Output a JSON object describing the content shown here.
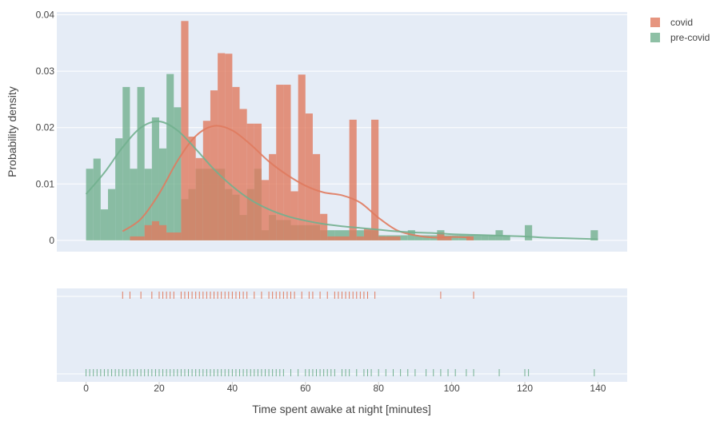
{
  "chart_data": {
    "type": "histogram",
    "xlabel": "Time spent awake at night [minutes]",
    "ylabel": "Probability density",
    "xlim": [
      -8,
      148
    ],
    "ylim": [
      -0.002,
      0.0405
    ],
    "x_ticks": [
      0,
      20,
      40,
      60,
      80,
      100,
      120,
      140
    ],
    "y_ticks": [
      0,
      0.01,
      0.02,
      0.03,
      0.04
    ],
    "y_tick_labels": [
      "0",
      "0.01",
      "0.02",
      "0.03",
      "0.04"
    ],
    "bin_width": 2,
    "legend_position": "top-right",
    "series": [
      {
        "name": "covid",
        "color": "#e07b5f",
        "bin_starts": [
          10,
          12,
          14,
          16,
          18,
          20,
          22,
          24,
          26,
          28,
          30,
          32,
          34,
          36,
          38,
          40,
          42,
          44,
          46,
          48,
          50,
          52,
          54,
          56,
          58,
          60,
          62,
          64,
          66,
          68,
          70,
          72,
          74,
          76,
          78,
          80,
          82,
          84,
          86,
          88,
          90,
          92,
          94,
          96,
          98,
          100,
          102,
          104,
          106
        ],
        "density": [
          0,
          0.0007,
          0.0007,
          0.0027,
          0.0034,
          0.0027,
          0.0014,
          0.0014,
          0.0389,
          0.0184,
          0.0146,
          0.0212,
          0.0266,
          0.0332,
          0.0331,
          0.0272,
          0.0233,
          0.0207,
          0.0207,
          0.0107,
          0.0153,
          0.0276,
          0.0276,
          0.0087,
          0.0294,
          0.0225,
          0.0153,
          0.0047,
          0.0007,
          0.0007,
          0.0007,
          0.0214,
          0.0007,
          0.0021,
          0.0214,
          0.0007,
          0.0007,
          0.0007,
          0,
          0,
          0,
          0,
          0,
          0.0014,
          0.0007,
          0,
          0,
          0.0007,
          0
        ],
        "kde_x": [
          10,
          15,
          20,
          25,
          30,
          35,
          40,
          45,
          50,
          55,
          60,
          65,
          70,
          75,
          80,
          85,
          90,
          95,
          100,
          105
        ],
        "kde_y": [
          0.0016,
          0.0038,
          0.0083,
          0.0141,
          0.0185,
          0.0203,
          0.0195,
          0.017,
          0.014,
          0.0116,
          0.0097,
          0.0085,
          0.008,
          0.0067,
          0.004,
          0.0018,
          0.0009,
          0.0005,
          0.0006,
          0.0005
        ]
      },
      {
        "name": "pre-covid",
        "color": "#72b08f",
        "bin_starts": [
          0,
          2,
          4,
          6,
          8,
          10,
          12,
          14,
          16,
          18,
          20,
          22,
          24,
          26,
          28,
          30,
          32,
          34,
          36,
          38,
          40,
          42,
          44,
          46,
          48,
          50,
          52,
          54,
          56,
          58,
          60,
          62,
          64,
          66,
          68,
          70,
          72,
          74,
          76,
          78,
          80,
          82,
          84,
          86,
          88,
          90,
          92,
          94,
          96,
          98,
          100,
          102,
          104,
          106,
          108,
          110,
          112,
          114,
          116,
          118,
          120,
          122,
          124,
          126,
          128,
          130,
          132,
          134,
          136,
          138
        ],
        "density": [
          0.0127,
          0.0145,
          0.0055,
          0.0091,
          0.0181,
          0.0272,
          0.0127,
          0.0272,
          0.0127,
          0.0218,
          0.0163,
          0.0295,
          0.0236,
          0.0073,
          0.0091,
          0.0127,
          0.0127,
          0.0127,
          0.0127,
          0.0091,
          0.0081,
          0.0045,
          0.0091,
          0.0127,
          0.0018,
          0.0045,
          0.0036,
          0.0036,
          0.0027,
          0.0027,
          0.0027,
          0.0027,
          0.0018,
          0.0018,
          0.0018,
          0.0018,
          0.0018,
          0.0018,
          0.0018,
          0.0018,
          0.0009,
          0.0009,
          0.0009,
          0.0009,
          0.0018,
          0.0009,
          0.0009,
          0.0009,
          0.0018,
          0.0009,
          0.0009,
          0.0009,
          0.0009,
          0.0009,
          0.0009,
          0.0009,
          0.0018,
          0.0009,
          0,
          0,
          0.0027,
          0,
          0,
          0,
          0,
          0,
          0,
          0,
          0,
          0.0018
        ],
        "kde_x": [
          0,
          5,
          10,
          15,
          20,
          25,
          30,
          35,
          40,
          45,
          50,
          55,
          60,
          65,
          70,
          75,
          80,
          85,
          90,
          95,
          100,
          105,
          110,
          115,
          120,
          125,
          130,
          135,
          140
        ],
        "kde_y": [
          0.0082,
          0.012,
          0.0165,
          0.02,
          0.0211,
          0.0195,
          0.0162,
          0.0126,
          0.0096,
          0.0072,
          0.0055,
          0.0043,
          0.0035,
          0.0029,
          0.0025,
          0.0022,
          0.0019,
          0.0016,
          0.0014,
          0.0013,
          0.0011,
          0.001,
          0.0009,
          0.0008,
          0.0007,
          0.0005,
          0.0004,
          0.0003,
          0.0002
        ]
      }
    ],
    "rug": {
      "covid": [
        10,
        12,
        15,
        18,
        20,
        21,
        22,
        23,
        24,
        26,
        27,
        28,
        29,
        30,
        31,
        32,
        33,
        34,
        35,
        36,
        37,
        38,
        39,
        40,
        41,
        42,
        43,
        44,
        46,
        48,
        50,
        51,
        52,
        53,
        54,
        55,
        56,
        57,
        59,
        61,
        62,
        64,
        66,
        68,
        69,
        70,
        71,
        72,
        73,
        74,
        75,
        76,
        77,
        79,
        97,
        106
      ],
      "pre-covid": [
        0,
        1,
        2,
        3,
        4,
        5,
        6,
        7,
        8,
        9,
        10,
        11,
        12,
        13,
        14,
        15,
        16,
        17,
        18,
        19,
        20,
        21,
        22,
        23,
        24,
        25,
        26,
        27,
        28,
        29,
        30,
        31,
        32,
        33,
        34,
        35,
        36,
        37,
        38,
        39,
        40,
        41,
        42,
        43,
        44,
        45,
        46,
        47,
        48,
        49,
        50,
        51,
        52,
        53,
        54,
        56,
        58,
        60,
        61,
        62,
        63,
        64,
        65,
        66,
        67,
        68,
        70,
        71,
        72,
        74,
        76,
        77,
        78,
        80,
        82,
        84,
        86,
        88,
        90,
        93,
        95,
        97,
        99,
        101,
        104,
        106,
        113,
        120,
        121,
        139
      ]
    }
  }
}
